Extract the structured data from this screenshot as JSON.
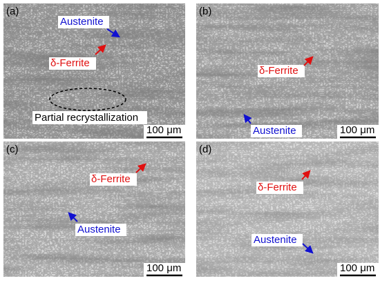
{
  "panels": [
    {
      "label": "(a)",
      "annotations": [
        "Austenite",
        "δ-Ferrite",
        "Partial recrystallization"
      ],
      "scale_bar": "100 μm"
    },
    {
      "label": "(b)",
      "annotations": [
        "δ-Ferrite",
        "Austenite"
      ],
      "scale_bar": "100 μm"
    },
    {
      "label": "(c)",
      "annotations": [
        "δ-Ferrite",
        "Austenite"
      ],
      "scale_bar": "100 μm"
    },
    {
      "label": "(d)",
      "annotations": [
        "δ-Ferrite",
        "Austenite"
      ],
      "scale_bar": "100 μm"
    }
  ]
}
